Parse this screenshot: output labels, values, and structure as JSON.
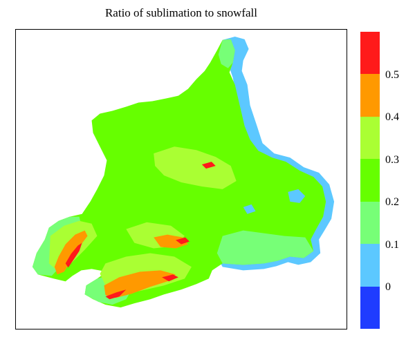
{
  "title": "Ratio of sublimation to snowfall",
  "colorbar": {
    "segments_top_to_bottom": [
      "#ff1a1a",
      "#ff9900",
      "#aaff33",
      "#66ff00",
      "#77ff77",
      "#5cc8ff",
      "#1f3cff"
    ],
    "tick_labels": [
      "0.5",
      "0.4",
      "0.3",
      "0.2",
      "0.1",
      "0"
    ]
  },
  "map": {
    "background_color": "#ffffff",
    "region_colors": {
      "base": "#66ff00",
      "light_green": "#77ff77",
      "yellow_green": "#aaff33",
      "blue": "#5cc8ff",
      "orange": "#ff9900",
      "red": "#ff1a1a"
    }
  }
}
